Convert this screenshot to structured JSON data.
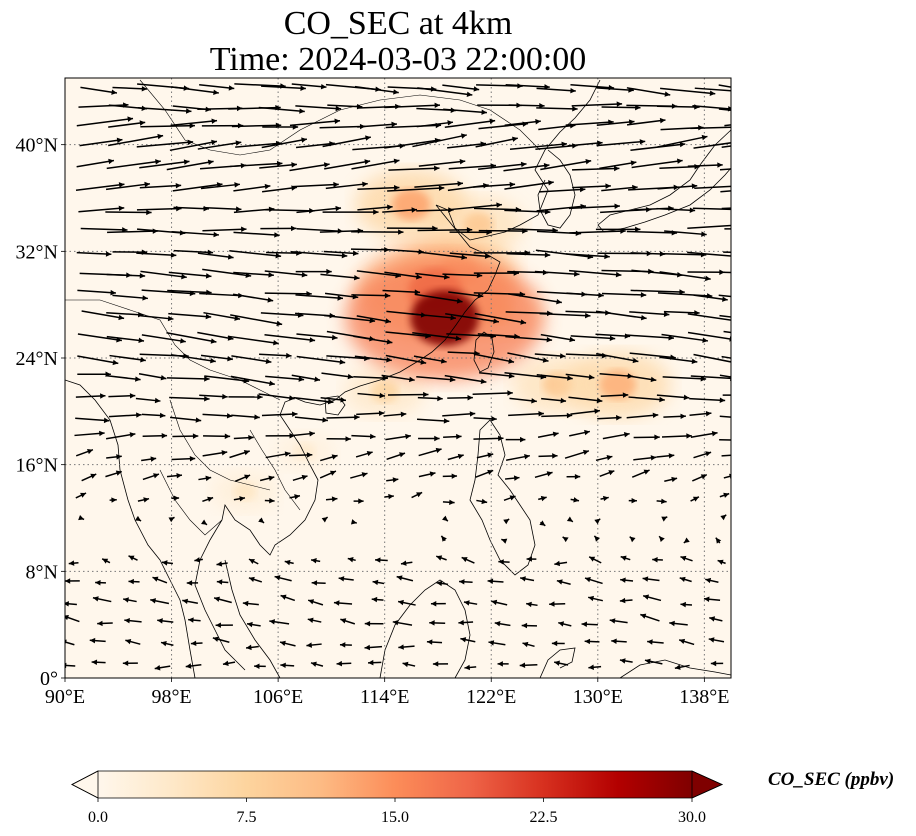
{
  "title": {
    "line1": "CO_SEC at 4km",
    "line2": "Time: 2024-03-03 22:00:00"
  },
  "map": {
    "extent": {
      "lon": [
        90,
        140
      ],
      "lat": [
        0,
        45
      ]
    },
    "lon_ticks": [
      {
        "value": 90,
        "label": "90°E"
      },
      {
        "value": 98,
        "label": "98°E"
      },
      {
        "value": 106,
        "label": "106°E"
      },
      {
        "value": 114,
        "label": "114°E"
      },
      {
        "value": 122,
        "label": "122°E"
      },
      {
        "value": 130,
        "label": "130°E"
      },
      {
        "value": 138,
        "label": "138°E"
      }
    ],
    "lat_ticks": [
      {
        "value": 0,
        "label": "0°"
      },
      {
        "value": 8,
        "label": "8°N"
      },
      {
        "value": 16,
        "label": "16°N"
      },
      {
        "value": 24,
        "label": "24°N"
      },
      {
        "value": 32,
        "label": "32°N"
      },
      {
        "value": 40,
        "label": "40°N"
      }
    ],
    "gridlines": true,
    "gridline_style": "dotted",
    "field_colormap": "OrRd",
    "plumes": [
      {
        "lon": 118.5,
        "lat": 27.0,
        "value": 30
      },
      {
        "lon": 117.8,
        "lat": 29.0,
        "value": 22
      },
      {
        "lon": 119.5,
        "lat": 30.5,
        "value": 14
      },
      {
        "lon": 116.0,
        "lat": 35.5,
        "value": 13
      },
      {
        "lon": 121.0,
        "lat": 34.0,
        "value": 9
      },
      {
        "lon": 122.5,
        "lat": 27.5,
        "value": 8
      },
      {
        "lon": 131.5,
        "lat": 22.0,
        "value": 12
      },
      {
        "lon": 127.0,
        "lat": 22.0,
        "value": 9
      },
      {
        "lon": 114.0,
        "lat": 21.5,
        "value": 7
      },
      {
        "lon": 103.5,
        "lat": 14.0,
        "value": 4
      },
      {
        "lon": 108.0,
        "lat": 17.0,
        "value": 3
      }
    ],
    "wind_field": [
      {
        "lat": 44,
        "u": 1.0,
        "v": -0.1
      },
      {
        "lat": 40,
        "u": 1.0,
        "v": 0.15
      },
      {
        "lat": 36,
        "u": 1.0,
        "v": 0.05
      },
      {
        "lat": 32,
        "u": 1.0,
        "v": -0.05
      },
      {
        "lat": 28,
        "u": 0.95,
        "v": -0.1
      },
      {
        "lat": 24,
        "u": 0.85,
        "v": -0.1
      },
      {
        "lat": 20,
        "u": 0.65,
        "v": 0.0
      },
      {
        "lat": 16,
        "u": 0.4,
        "v": 0.1
      },
      {
        "lat": 12,
        "u": 0.1,
        "v": 0.0
      },
      {
        "lat": 8,
        "u": -0.3,
        "v": 0.05
      },
      {
        "lat": 4,
        "u": -0.35,
        "v": 0.05
      },
      {
        "lat": 0,
        "u": -0.3,
        "v": 0.0
      }
    ]
  },
  "colorbar": {
    "label": "CO_SEC (ppbv)",
    "min": 0,
    "max": 30,
    "extend": "both",
    "ticks": [
      {
        "value": 0,
        "label": "0.0"
      },
      {
        "value": 7.5,
        "label": "7.5"
      },
      {
        "value": 15,
        "label": "15.0"
      },
      {
        "value": 22.5,
        "label": "22.5"
      },
      {
        "value": 30,
        "label": "30.0"
      }
    ],
    "colors": [
      "#fff7ec",
      "#fee8c8",
      "#fdd49e",
      "#fdbb84",
      "#fc8d59",
      "#ef6548",
      "#d7301f",
      "#b30000",
      "#7f0000"
    ]
  }
}
